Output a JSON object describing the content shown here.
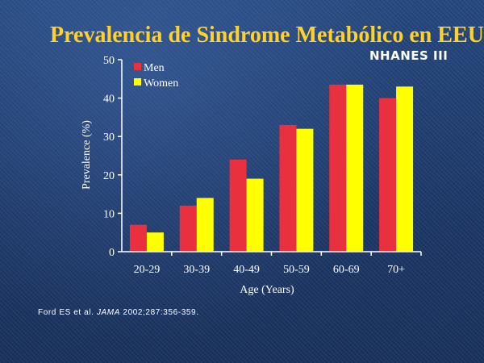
{
  "slide": {
    "title": "Prevalencia de Sindrome Metabólico en EEUU",
    "subtitle": "NHANES III",
    "citation": {
      "authors": "Ford ES et al.",
      "journal": "JAMA",
      "details": "2002;287:356-359."
    }
  },
  "colors": {
    "title": "#ffd12a",
    "men": "#e8303e",
    "women": "#ffff00",
    "axis": "#ffffff",
    "text": "#ffffff"
  },
  "chart_data": {
    "type": "bar",
    "xlabel": "Age (Years)",
    "ylabel": "Prevalence (%)",
    "ylim": [
      0,
      50
    ],
    "yticks": [
      0,
      10,
      20,
      30,
      40,
      50
    ],
    "grid": false,
    "legend_position": "top-left",
    "categories": [
      "20-29",
      "30-39",
      "40-49",
      "50-59",
      "60-69",
      "70+"
    ],
    "series": [
      {
        "name": "Men",
        "color": "#e8303e",
        "values": [
          7,
          12,
          24,
          33,
          43.5,
          40
        ]
      },
      {
        "name": "Women",
        "color": "#ffff00",
        "values": [
          5,
          14,
          19,
          32,
          43.5,
          43
        ]
      }
    ]
  }
}
